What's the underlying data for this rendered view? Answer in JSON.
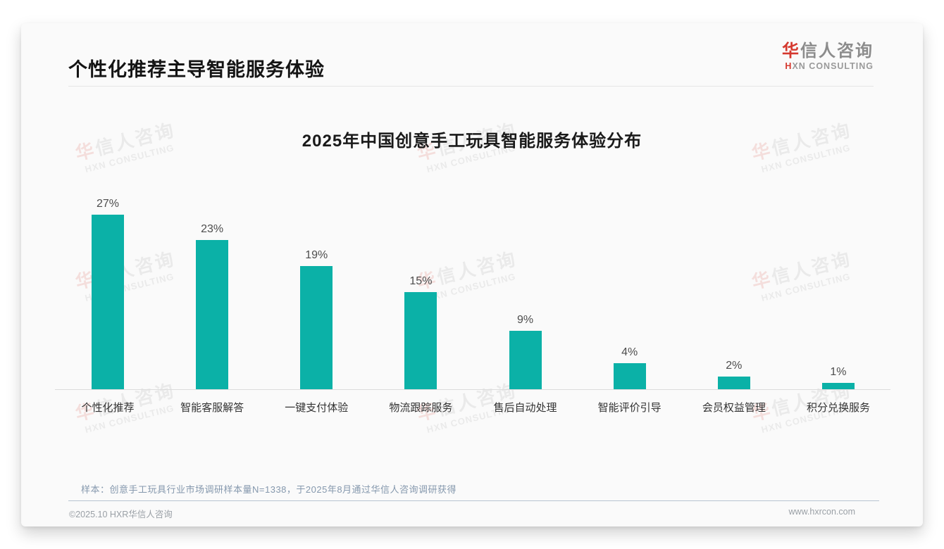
{
  "page": {
    "title": "个性化推荐主导智能服务体验",
    "logo": {
      "cn_first": "华",
      "cn_rest": "信人咨询",
      "en_first": "H",
      "en_rest": "XN CONSULTING"
    },
    "note": "样本：创意手工玩具行业市场调研样本量N=1338，于2025年8月通过华信人咨询调研获得",
    "footer": {
      "copyright": "©2025.10 HXR华信人咨询",
      "website": "www.hxrcon.com"
    }
  },
  "watermark": {
    "line1_first": "华",
    "line1_rest": "信人咨询",
    "line2": "HXN CONSULTING"
  },
  "chart_data": {
    "type": "bar",
    "title": "2025年中国创意手工玩具智能服务体验分布",
    "categories": [
      "个性化推荐",
      "智能客服解答",
      "一键支付体验",
      "物流跟踪服务",
      "售后自动处理",
      "智能评价引导",
      "会员权益管理",
      "积分兑换服务"
    ],
    "values": [
      27,
      23,
      19,
      15,
      9,
      4,
      2,
      1
    ],
    "value_suffix": "%",
    "bar_color": "#0bb1a7",
    "xlabel": "",
    "ylabel": "",
    "ylim": [
      0,
      30
    ],
    "grid": false,
    "legend": "none",
    "value_labels_shown": true
  }
}
